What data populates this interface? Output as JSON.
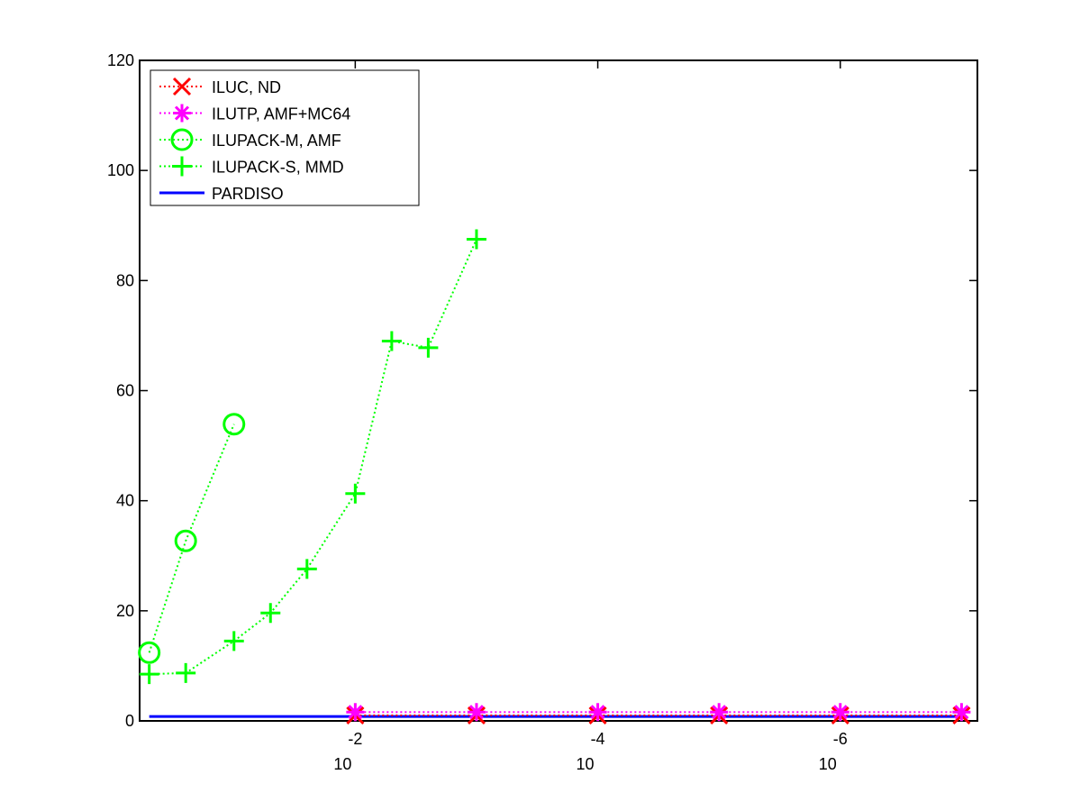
{
  "chart_data": {
    "type": "line",
    "xscale": "log",
    "xreversed": true,
    "xlim": [
      0.6,
      7.4e-08
    ],
    "ylim": [
      0,
      120
    ],
    "xticks": [
      {
        "value": 0.01,
        "label": "10",
        "exponent": "-2"
      },
      {
        "value": 0.0001,
        "label": "10",
        "exponent": "-4"
      },
      {
        "value": 1e-06,
        "label": "10",
        "exponent": "-6"
      }
    ],
    "yticks": [
      0,
      20,
      40,
      60,
      80,
      100,
      120
    ],
    "grid": false,
    "legend": "upper left",
    "series": [
      {
        "name": "ILUC,  ND",
        "color": "#ff0000",
        "marker": "x",
        "linestyle": "dotted",
        "x": [
          0.01,
          0.001,
          0.0001,
          1e-05,
          1e-06,
          1e-07
        ],
        "values": [
          1,
          1,
          1,
          1,
          1,
          1
        ]
      },
      {
        "name": "ILUTP, AMF+MC64",
        "color": "#ff00ff",
        "marker": "asterisk",
        "linestyle": "dotted",
        "x": [
          0.01,
          0.001,
          0.0001,
          1e-05,
          1e-06,
          1e-07
        ],
        "values": [
          1.6,
          1.6,
          1.6,
          1.6,
          1.6,
          1.6
        ]
      },
      {
        "name": "ILUPACK-M, AMF",
        "color": "#00ff00",
        "marker": "circle",
        "linestyle": "dotted",
        "x": [
          0.5,
          0.25,
          0.1
        ],
        "values": [
          12.4,
          32.7,
          53.9
        ]
      },
      {
        "name": "ILUPACK-S, MMD",
        "color": "#00ff00",
        "marker": "plus",
        "linestyle": "dotted",
        "x": [
          0.5,
          0.25,
          0.1,
          0.05,
          0.025,
          0.01,
          0.005,
          0.0025,
          0.001
        ],
        "values": [
          8.5,
          8.7,
          14.5,
          19.6,
          27.6,
          41.3,
          69,
          67.8,
          87.5
        ]
      },
      {
        "name": "PARDISO",
        "color": "#0000ff",
        "marker": "none",
        "linestyle": "solid",
        "x": [
          0.5,
          1e-07
        ],
        "values": [
          0.8,
          0.8
        ]
      }
    ]
  }
}
